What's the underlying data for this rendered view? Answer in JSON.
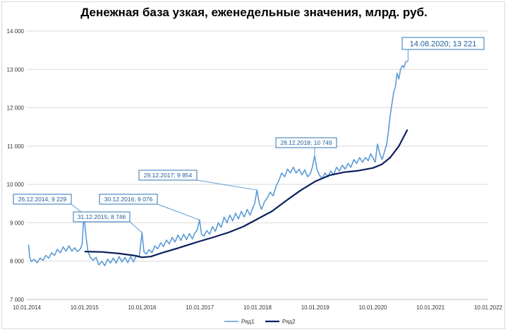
{
  "chart_data": {
    "type": "line",
    "title": "Денежная база узкая, еженедельные значения, млрд. руб.",
    "ylim": [
      7000,
      14000
    ],
    "y_ticks": [
      "7 000",
      "8 000",
      "9 000",
      "10 000",
      "11 000",
      "12 000",
      "13 000",
      "14 000"
    ],
    "x_ticks": [
      "10.01.2014",
      "10.01.2015",
      "10.01.2016",
      "10.01.2017",
      "10.01.2018",
      "10.01.2019",
      "10.01.2020",
      "10.01.2021",
      "10.01.2022"
    ],
    "legend_position": "bottom",
    "grid": true,
    "series": [
      {
        "name": "Ряд1",
        "color": "#5b9bd5",
        "points": [
          [
            2014.03,
            8430
          ],
          [
            2014.05,
            8100
          ],
          [
            2014.08,
            7990
          ],
          [
            2014.13,
            8050
          ],
          [
            2014.18,
            7960
          ],
          [
            2014.23,
            8080
          ],
          [
            2014.28,
            8020
          ],
          [
            2014.33,
            8150
          ],
          [
            2014.38,
            8080
          ],
          [
            2014.43,
            8220
          ],
          [
            2014.48,
            8150
          ],
          [
            2014.53,
            8310
          ],
          [
            2014.58,
            8220
          ],
          [
            2014.63,
            8370
          ],
          [
            2014.68,
            8260
          ],
          [
            2014.73,
            8400
          ],
          [
            2014.78,
            8260
          ],
          [
            2014.83,
            8350
          ],
          [
            2014.88,
            8250
          ],
          [
            2014.93,
            8320
          ],
          [
            2014.96,
            8450
          ],
          [
            2014.99,
            9229
          ],
          [
            2015.03,
            8600
          ],
          [
            2015.06,
            8250
          ],
          [
            2015.1,
            8100
          ],
          [
            2015.15,
            8020
          ],
          [
            2015.2,
            8100
          ],
          [
            2015.25,
            7900
          ],
          [
            2015.3,
            8000
          ],
          [
            2015.35,
            7880
          ],
          [
            2015.4,
            8050
          ],
          [
            2015.45,
            7950
          ],
          [
            2015.5,
            8080
          ],
          [
            2015.55,
            7950
          ],
          [
            2015.6,
            8120
          ],
          [
            2015.65,
            7980
          ],
          [
            2015.7,
            8100
          ],
          [
            2015.75,
            7960
          ],
          [
            2015.8,
            8120
          ],
          [
            2015.85,
            7980
          ],
          [
            2015.9,
            8150
          ],
          [
            2015.95,
            8120
          ],
          [
            2015.997,
            8746
          ],
          [
            2016.03,
            8250
          ],
          [
            2016.07,
            8180
          ],
          [
            2016.12,
            8300
          ],
          [
            2016.17,
            8220
          ],
          [
            2016.22,
            8400
          ],
          [
            2016.27,
            8320
          ],
          [
            2016.32,
            8480
          ],
          [
            2016.37,
            8380
          ],
          [
            2016.42,
            8550
          ],
          [
            2016.47,
            8450
          ],
          [
            2016.52,
            8620
          ],
          [
            2016.57,
            8500
          ],
          [
            2016.62,
            8680
          ],
          [
            2016.67,
            8540
          ],
          [
            2016.72,
            8700
          ],
          [
            2016.77,
            8560
          ],
          [
            2016.82,
            8720
          ],
          [
            2016.87,
            8580
          ],
          [
            2016.92,
            8750
          ],
          [
            2016.95,
            8800
          ],
          [
            2016.995,
            9076
          ],
          [
            2017.03,
            8700
          ],
          [
            2017.07,
            8650
          ],
          [
            2017.12,
            8800
          ],
          [
            2017.17,
            8700
          ],
          [
            2017.22,
            8900
          ],
          [
            2017.27,
            8780
          ],
          [
            2017.32,
            9000
          ],
          [
            2017.37,
            8880
          ],
          [
            2017.42,
            9150
          ],
          [
            2017.47,
            9000
          ],
          [
            2017.52,
            9200
          ],
          [
            2017.57,
            9050
          ],
          [
            2017.62,
            9250
          ],
          [
            2017.67,
            9100
          ],
          [
            2017.72,
            9300
          ],
          [
            2017.77,
            9150
          ],
          [
            2017.82,
            9350
          ],
          [
            2017.87,
            9200
          ],
          [
            2017.92,
            9400
          ],
          [
            2017.95,
            9500
          ],
          [
            2017.99,
            9854
          ],
          [
            2018.03,
            9500
          ],
          [
            2018.07,
            9350
          ],
          [
            2018.12,
            9550
          ],
          [
            2018.17,
            9650
          ],
          [
            2018.22,
            9800
          ],
          [
            2018.27,
            9700
          ],
          [
            2018.32,
            9950
          ],
          [
            2018.37,
            10100
          ],
          [
            2018.42,
            10300
          ],
          [
            2018.47,
            10200
          ],
          [
            2018.52,
            10400
          ],
          [
            2018.57,
            10300
          ],
          [
            2018.62,
            10450
          ],
          [
            2018.67,
            10300
          ],
          [
            2018.72,
            10400
          ],
          [
            2018.77,
            10250
          ],
          [
            2018.82,
            10380
          ],
          [
            2018.87,
            10200
          ],
          [
            2018.92,
            10300
          ],
          [
            2018.95,
            10450
          ],
          [
            2018.99,
            10749
          ],
          [
            2019.03,
            10400
          ],
          [
            2019.07,
            10250
          ],
          [
            2019.12,
            10150
          ],
          [
            2019.17,
            10300
          ],
          [
            2019.22,
            10200
          ],
          [
            2019.27,
            10350
          ],
          [
            2019.32,
            10250
          ],
          [
            2019.37,
            10450
          ],
          [
            2019.42,
            10350
          ],
          [
            2019.47,
            10500
          ],
          [
            2019.52,
            10400
          ],
          [
            2019.57,
            10550
          ],
          [
            2019.62,
            10450
          ],
          [
            2019.67,
            10650
          ],
          [
            2019.72,
            10550
          ],
          [
            2019.77,
            10700
          ],
          [
            2019.82,
            10580
          ],
          [
            2019.87,
            10700
          ],
          [
            2019.92,
            10620
          ],
          [
            2019.96,
            10800
          ],
          [
            2020.0,
            10700
          ],
          [
            2020.04,
            10580
          ],
          [
            2020.08,
            11050
          ],
          [
            2020.12,
            10800
          ],
          [
            2020.16,
            10650
          ],
          [
            2020.2,
            10850
          ],
          [
            2020.24,
            11050
          ],
          [
            2020.27,
            11400
          ],
          [
            2020.3,
            11800
          ],
          [
            2020.33,
            12100
          ],
          [
            2020.36,
            12400
          ],
          [
            2020.39,
            12550
          ],
          [
            2020.42,
            12900
          ],
          [
            2020.45,
            12750
          ],
          [
            2020.48,
            13000
          ],
          [
            2020.51,
            13100
          ],
          [
            2020.54,
            13050
          ],
          [
            2020.57,
            13200
          ],
          [
            2020.61,
            13221
          ]
        ]
      },
      {
        "name": "Ряд2",
        "color": "#0b1f5c",
        "points": [
          [
            2015.0,
            8250
          ],
          [
            2015.3,
            8240
          ],
          [
            2015.6,
            8200
          ],
          [
            2015.85,
            8150
          ],
          [
            2016.0,
            8100
          ],
          [
            2016.15,
            8120
          ],
          [
            2016.35,
            8220
          ],
          [
            2016.6,
            8330
          ],
          [
            2016.85,
            8450
          ],
          [
            2017.0,
            8520
          ],
          [
            2017.25,
            8630
          ],
          [
            2017.5,
            8750
          ],
          [
            2017.75,
            8900
          ],
          [
            2018.0,
            9100
          ],
          [
            2018.25,
            9300
          ],
          [
            2018.5,
            9580
          ],
          [
            2018.75,
            9850
          ],
          [
            2019.0,
            10080
          ],
          [
            2019.25,
            10240
          ],
          [
            2019.5,
            10320
          ],
          [
            2019.75,
            10360
          ],
          [
            2020.0,
            10430
          ],
          [
            2020.15,
            10520
          ],
          [
            2020.3,
            10700
          ],
          [
            2020.45,
            11000
          ],
          [
            2020.6,
            11430
          ]
        ]
      }
    ],
    "annotations": [
      {
        "text": "26.12.2014; 9 229",
        "x": 2014.99,
        "y": 9229
      },
      {
        "text": "31.12.2015; 8 746",
        "x": 2015.997,
        "y": 8746
      },
      {
        "text": "30.12.2016; 9 076",
        "x": 2016.995,
        "y": 9076
      },
      {
        "text": "29.12.2017; 9 854",
        "x": 2017.99,
        "y": 9854
      },
      {
        "text": "28.12.2018; 10 749",
        "x": 2018.99,
        "y": 10749
      },
      {
        "text": "14.08.2020; 13 221",
        "x": 2020.61,
        "y": 13221
      }
    ]
  }
}
